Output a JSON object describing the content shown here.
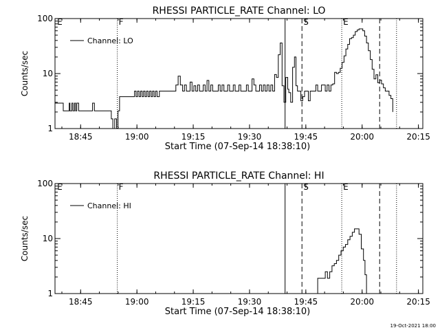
{
  "footer": "19-Oct-2021 18:00",
  "chart_data": [
    {
      "type": "line",
      "title": "RHESSI PARTICLE_RATE Channel: LO",
      "xlabel": "Start Time (07-Sep-14 18:38:10)",
      "ylabel": "Counts/sec",
      "yscale": "log",
      "ylim": [
        1,
        100
      ],
      "xlim": [
        0.0,
        98.0
      ],
      "xtick_labels": [
        "18:45",
        "19:00",
        "19:15",
        "19:30",
        "19:45",
        "20:00",
        "20:15"
      ],
      "xtick_values": [
        6.83,
        21.83,
        36.83,
        51.83,
        66.83,
        81.83,
        96.83
      ],
      "ytick_labels": [
        "1",
        "10",
        "100"
      ],
      "ytick_values": [
        1,
        10,
        100
      ],
      "legend": {
        "entries": [
          "Channel: LO"
        ],
        "position": "top-left"
      },
      "markers": [
        {
          "x": 0.2,
          "style": "none",
          "label": "E"
        },
        {
          "x": 16.6,
          "style": "dotted",
          "label": "F"
        },
        {
          "x": 61.3,
          "style": "solid",
          "label": ""
        },
        {
          "x": 65.8,
          "style": "dashed",
          "label": "S"
        },
        {
          "x": 76.4,
          "style": "dotted",
          "label": "E"
        },
        {
          "x": 86.5,
          "style": "dashed",
          "label": ""
        },
        {
          "x": 91.0,
          "style": "dotted",
          "label": ""
        }
      ],
      "series": [
        {
          "x": [
            0,
            0.3,
            1.7,
            2.2,
            3.8,
            4.0,
            4.5,
            4.8,
            5.2,
            5.5,
            5.8,
            6.3,
            6.7,
            7.2,
            7.6,
            8.1,
            9.6,
            10.0,
            10.5,
            14.2,
            14.5,
            15.0,
            15.4,
            15.9,
            16.4,
            16.8,
            17.2,
            17.8,
            21.0,
            21.2,
            21.6,
            22.0,
            22.4,
            22.8,
            23.2,
            23.6,
            24.0,
            24.4,
            24.8,
            25.2,
            25.6,
            26.0,
            26.4,
            26.8,
            27.2,
            27.8,
            28.0,
            28.5,
            29.2,
            29.8,
            30.4,
            31.0,
            31.6,
            32.2,
            32.8,
            33.4,
            34.0,
            34.5,
            35.0,
            35.5,
            36.0,
            36.5,
            37.0,
            37.5,
            38.0,
            38.5,
            39.0,
            39.5,
            40.0,
            40.5,
            41.0,
            41.5,
            42.0,
            42.5,
            43.0,
            43.5,
            44.0,
            44.5,
            45.0,
            45.5,
            46.0,
            46.5,
            47.0,
            47.5,
            48.0,
            48.5,
            49.0,
            49.5,
            50.0,
            50.5,
            51.0,
            51.5,
            52.0,
            52.5,
            53.0,
            53.5,
            54.0,
            54.5,
            55.0,
            55.5,
            56.0,
            56.5,
            57.0,
            57.5,
            58.0,
            58.5,
            59.0,
            59.5,
            60.0,
            60.5,
            61.0,
            61.5,
            62.0,
            62.3,
            62.8,
            63.3,
            63.8,
            64.2,
            64.6,
            65.0,
            65.5,
            66.0,
            66.5,
            67.0,
            67.5,
            68.0,
            68.5,
            69.0,
            69.5,
            70.0,
            70.5,
            71.0,
            71.5,
            72.0,
            72.5,
            73.0,
            73.5,
            74.0,
            74.5,
            75.0,
            75.5,
            76.0,
            76.5,
            77.0,
            77.5,
            78.0,
            78.5,
            79.0,
            79.5,
            80.0,
            80.5,
            81.0,
            81.5,
            82.0,
            82.5,
            83.0,
            83.5,
            84.0,
            84.5,
            85.0,
            85.5,
            86.0,
            86.5,
            87.0,
            87.5,
            88.0,
            88.5,
            89.0,
            89.5,
            90.0
          ],
          "y": [
            2.9,
            2.9,
            2.9,
            2.1,
            2.9,
            2.1,
            2.9,
            2.1,
            2.9,
            2.1,
            2.9,
            2.1,
            2.1,
            2.1,
            2.1,
            2.1,
            2.1,
            2.9,
            2.1,
            2.1,
            2.1,
            1.5,
            1.0,
            1.5,
            0.9,
            2.1,
            3.8,
            3.8,
            3.8,
            4.8,
            3.8,
            4.8,
            3.8,
            4.8,
            3.8,
            4.8,
            3.8,
            4.8,
            3.8,
            4.8,
            3.8,
            4.8,
            3.8,
            4.8,
            3.8,
            4.8,
            4.8,
            4.8,
            4.8,
            4.8,
            4.8,
            4.8,
            4.8,
            6.2,
            9.0,
            6.2,
            4.8,
            6.2,
            4.8,
            4.8,
            7.0,
            4.8,
            6.0,
            4.8,
            6.2,
            4.8,
            4.8,
            6.2,
            4.8,
            7.5,
            4.8,
            6.2,
            4.8,
            4.8,
            4.8,
            6.2,
            4.8,
            6.2,
            4.8,
            4.8,
            6.2,
            4.8,
            4.8,
            6.2,
            4.8,
            4.8,
            6.2,
            4.8,
            4.8,
            4.8,
            6.2,
            4.8,
            4.8,
            8.0,
            6.2,
            4.8,
            4.8,
            6.2,
            4.8,
            6.2,
            4.8,
            6.2,
            4.8,
            6.2,
            4.8,
            9.6,
            8.5,
            22.0,
            36.0,
            6.0,
            3.0,
            8.5,
            5.2,
            4.5,
            3.0,
            13.0,
            20.0,
            6.0,
            4.8,
            4.8,
            3.2,
            3.8,
            4.8,
            4.8,
            3.2,
            4.8,
            4.8,
            4.8,
            6.2,
            4.8,
            4.8,
            6.2,
            6.2,
            4.8,
            6.2,
            4.8,
            6.2,
            6.5,
            10.5,
            10.0,
            10.5,
            12.5,
            16.0,
            21.0,
            28.0,
            34.0,
            43.0,
            45.0,
            50.0,
            58.0,
            62.0,
            65.0,
            65.0,
            60.0,
            48.0,
            36.0,
            26.0,
            18.0,
            12.0,
            8.0,
            9.5,
            6.8,
            7.6,
            6.5,
            5.5,
            4.8,
            4.8,
            4.0,
            3.5,
            2.0
          ]
        }
      ]
    },
    {
      "type": "line",
      "title": "RHESSI PARTICLE_RATE Channel: HI",
      "xlabel": "Start Time (07-Sep-14 18:38:10)",
      "ylabel": "Counts/sec",
      "yscale": "log",
      "ylim": [
        1,
        100
      ],
      "xlim": [
        0.0,
        98.0
      ],
      "xtick_labels": [
        "18:45",
        "19:00",
        "19:15",
        "19:30",
        "19:45",
        "20:00",
        "20:15"
      ],
      "xtick_values": [
        6.83,
        21.83,
        36.83,
        51.83,
        66.83,
        81.83,
        96.83
      ],
      "ytick_labels": [
        "1",
        "10",
        "100"
      ],
      "ytick_values": [
        1,
        10,
        100
      ],
      "legend": {
        "entries": [
          "Channel: HI"
        ],
        "position": "top-left"
      },
      "markers": [
        {
          "x": 0.2,
          "style": "none",
          "label": "E"
        },
        {
          "x": 16.6,
          "style": "dotted",
          "label": "F"
        },
        {
          "x": 61.3,
          "style": "solid",
          "label": ""
        },
        {
          "x": 65.8,
          "style": "dashed",
          "label": "S"
        },
        {
          "x": 76.4,
          "style": "dotted",
          "label": "E"
        },
        {
          "x": 86.5,
          "style": "dashed",
          "label": ""
        },
        {
          "x": 91.0,
          "style": "dotted",
          "label": ""
        }
      ],
      "series": [
        {
          "x": [
            69.5,
            70.0,
            70.5,
            71.5,
            72.0,
            72.6,
            73.2,
            73.8,
            74.4,
            75.0,
            75.6,
            76.2,
            76.8,
            77.4,
            78.0,
            78.6,
            79.2,
            79.8,
            80.4,
            81.0,
            81.6,
            82.2,
            82.6,
            83.0
          ],
          "y": [
            1.0,
            1.9,
            1.9,
            1.9,
            2.5,
            1.9,
            2.5,
            3.2,
            3.5,
            4.0,
            5.0,
            6.0,
            7.0,
            7.8,
            9.5,
            11.0,
            13.0,
            15.0,
            15.0,
            12.0,
            6.5,
            4.0,
            2.2,
            1.0
          ]
        }
      ]
    }
  ]
}
